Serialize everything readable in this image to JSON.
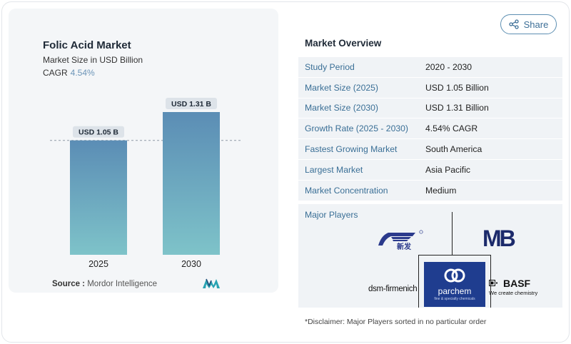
{
  "chart_data": {
    "type": "bar",
    "title": "Folic Acid Market",
    "subtitle": "Market Size in USD Billion",
    "cagr_label": "CAGR",
    "cagr_value": "4.54%",
    "categories": [
      "2025",
      "2030"
    ],
    "values": [
      1.05,
      1.31
    ],
    "data_labels": [
      "USD 1.05 B",
      "USD 1.31 B"
    ],
    "ylim": [
      0,
      1.31
    ],
    "bar_color_top": "#5b8db5",
    "bar_color_bottom": "#7ec3c9",
    "reference_line": 1.05
  },
  "source": {
    "label": "Source :",
    "text": "Mordor Intelligence"
  },
  "share": {
    "label": "Share"
  },
  "overview": {
    "title": "Market Overview",
    "rows": [
      {
        "label": "Study Period",
        "value": "2020 - 2030"
      },
      {
        "label": "Market Size (2025)",
        "value": "USD 1.05 Billion"
      },
      {
        "label": "Market Size (2030)",
        "value": "USD 1.31 Billion"
      },
      {
        "label": "Growth Rate (2025 - 2030)",
        "value": "4.54% CAGR"
      },
      {
        "label": "Fastest Growing Market",
        "value": "South America"
      },
      {
        "label": "Largest Market",
        "value": "Asia Pacific"
      },
      {
        "label": "Market Concentration",
        "value": "Medium"
      }
    ]
  },
  "players": {
    "title": "Major Players",
    "logos": {
      "xinfa": "新发",
      "mb": "MB",
      "dsm": "dsm-firmenich",
      "parchem_name": "parchem",
      "parchem_tag": "fine & specialty chemicals",
      "basf_name": "BASF",
      "basf_tag": "We create chemistry"
    }
  },
  "disclaimer": "*Disclaimer: Major Players sorted in no particular order",
  "colors": {
    "accent": "#3a6f96",
    "row_bg": "#f0f3f6",
    "parchem_blue": "#1f3d8f",
    "mb_navy": "#1c2a6b"
  }
}
